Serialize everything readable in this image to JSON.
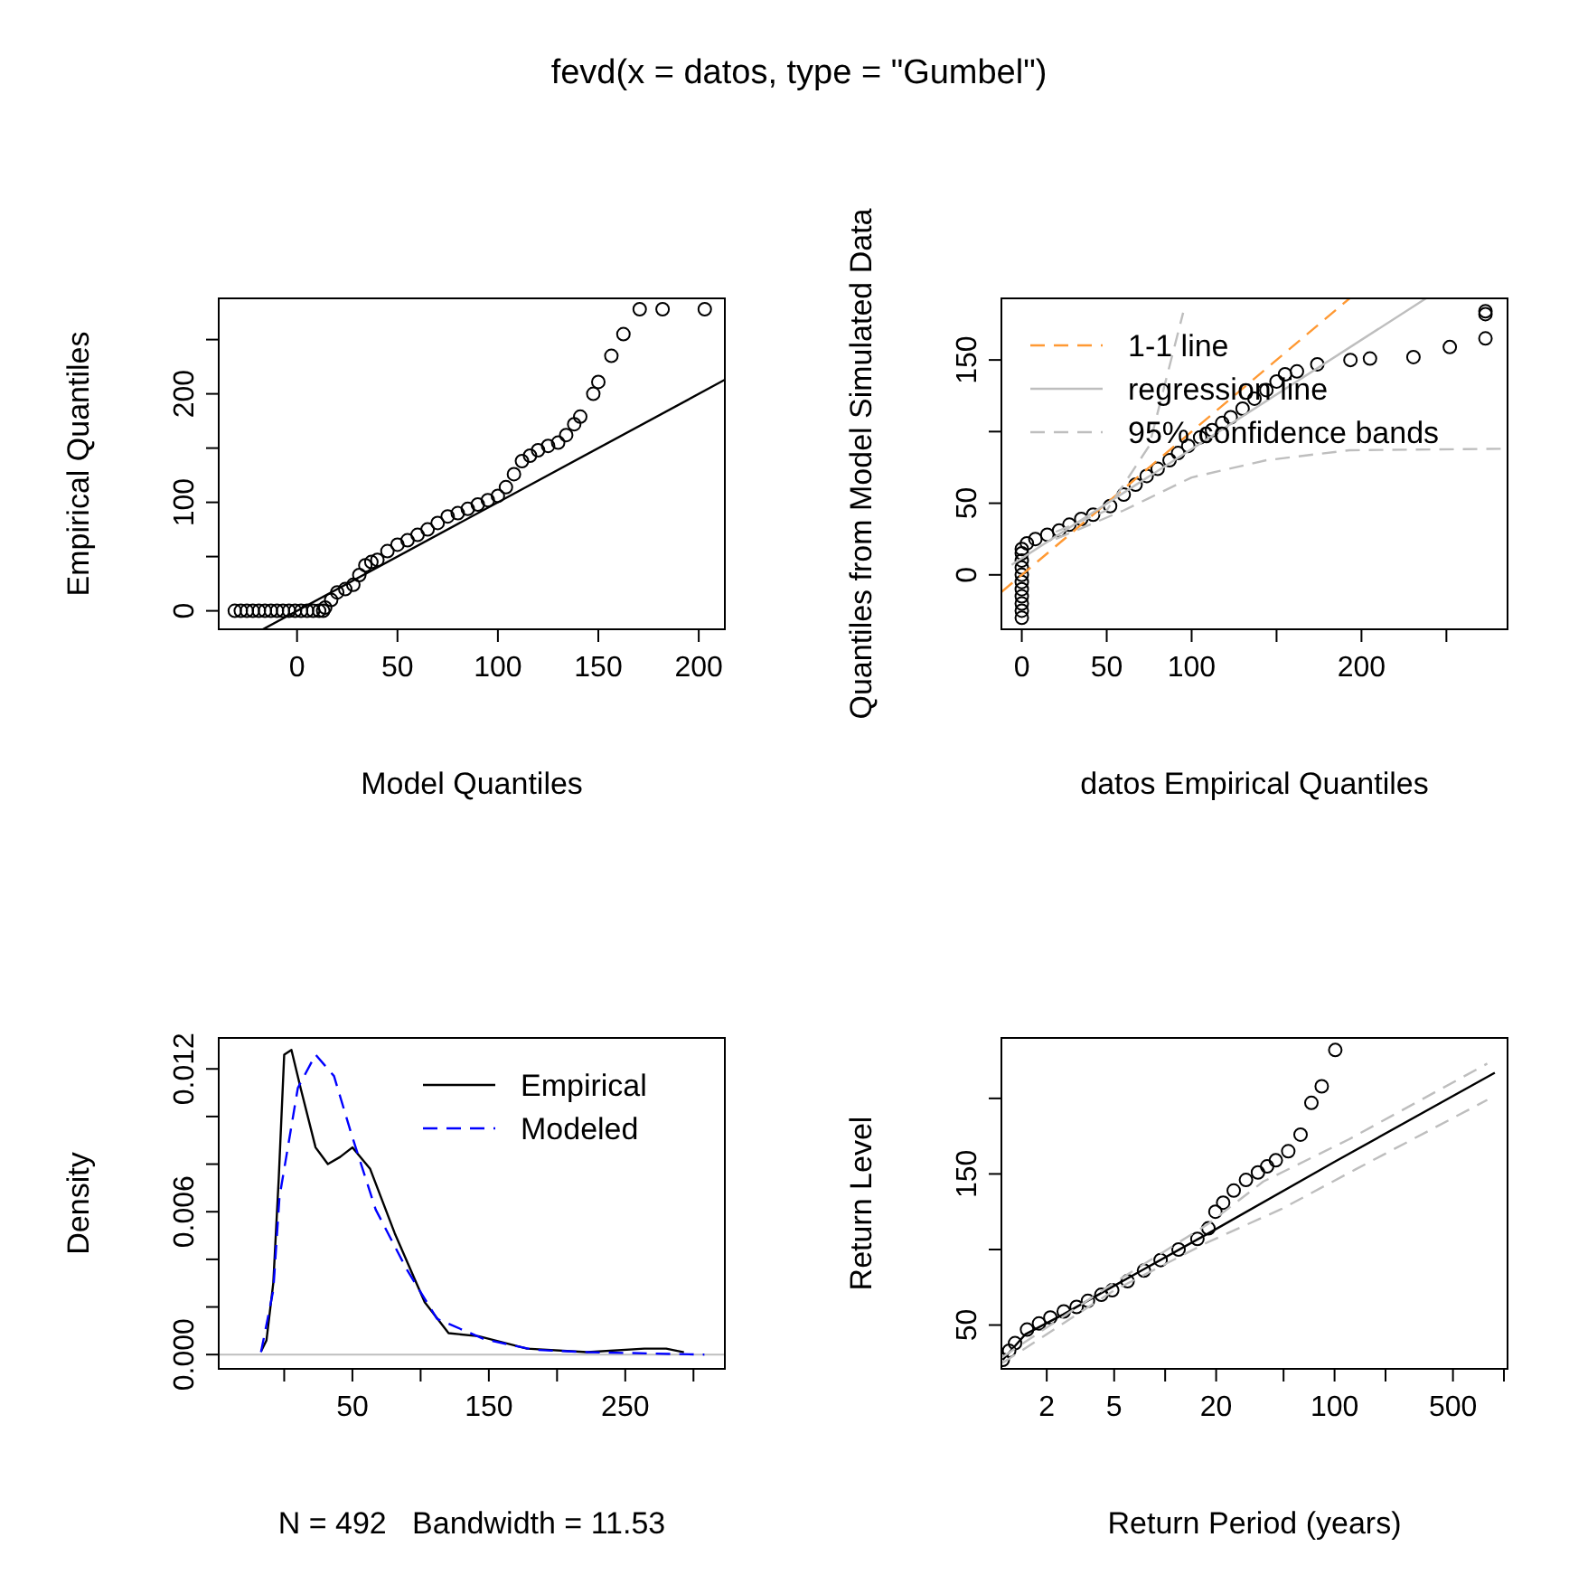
{
  "chart_data": [
    {
      "type": "scatter",
      "title": "fevd(x = datos, type = \"Gumbel\")",
      "xlabel": "Model Quantiles",
      "ylabel": "Empirical Quantiles",
      "xlim": [
        -39,
        213
      ],
      "ylim": [
        -17,
        288
      ],
      "xticks": [
        0,
        50,
        100,
        150,
        200
      ],
      "yticks": [
        0,
        {
          "value": 50,
          "label": null
        },
        100,
        {
          "value": 150,
          "label": null
        },
        200,
        {
          "value": 250,
          "label": null
        }
      ],
      "series": [
        {
          "marker": "circle",
          "color": "#000000",
          "x": [
            -31,
            -28,
            -25,
            -22,
            -19,
            -16,
            -13,
            -10,
            -7,
            -4,
            -1,
            2,
            5,
            8,
            11,
            13,
            14,
            17,
            20,
            24,
            28,
            31,
            34,
            37,
            40,
            45,
            50,
            55,
            60,
            65,
            70,
            75,
            80,
            85,
            90,
            95,
            100,
            104,
            108,
            112,
            116,
            120,
            125,
            130,
            134,
            138,
            141,
            147.5,
            150,
            156.5,
            162.5,
            170.6,
            182,
            203
          ],
          "values": [
            0,
            0,
            0,
            0,
            0,
            0,
            0,
            0,
            0,
            0,
            0,
            0,
            0,
            0,
            0,
            0,
            3,
            10,
            17,
            20,
            24,
            33,
            42,
            45,
            47,
            55,
            61,
            65,
            70,
            75,
            81,
            87,
            90,
            94,
            98,
            102,
            106,
            114,
            126,
            138,
            143,
            148,
            152,
            155,
            162,
            172,
            179,
            200,
            211,
            235,
            255,
            278,
            278,
            278
          ]
        },
        {
          "type": "line",
          "color": "#000000",
          "x": [
            -17,
            213
          ],
          "values": [
            -17,
            213
          ]
        }
      ]
    },
    {
      "type": "scatter",
      "xlabel": "datos Empirical Quantiles",
      "ylabel": "Quantiles from Model Simulated Data",
      "xlim": [
        -12,
        286
      ],
      "ylim": [
        -38,
        193
      ],
      "xticks": [
        0,
        50,
        100,
        {
          "value": 150,
          "label": null
        },
        200,
        {
          "value": 250,
          "label": null
        }
      ],
      "yticks": [
        0,
        50,
        {
          "value": 100,
          "label": null
        },
        150
      ],
      "legend": "top left",
      "series": [
        {
          "marker": "circle",
          "color": "#000000",
          "x": [
            0,
            0,
            0,
            0,
            0,
            0,
            0,
            0,
            0,
            0,
            0,
            3,
            8,
            15,
            22,
            28,
            35,
            42,
            52,
            60,
            67,
            73.5,
            80,
            87,
            92,
            98,
            105,
            112,
            118,
            123,
            130,
            137,
            144,
            150,
            155,
            162,
            174,
            193.5,
            205,
            230.6,
            252,
            273,
            273,
            273
          ],
          "values": [
            -30,
            -25,
            -20,
            -15,
            -10,
            -5,
            0,
            5,
            10,
            15,
            18,
            22,
            25,
            28,
            31,
            35,
            39,
            42,
            48,
            56,
            63,
            69,
            74,
            80,
            85,
            90,
            96,
            101,
            106,
            110,
            116,
            123,
            129,
            135,
            140,
            142,
            147,
            150,
            151,
            152,
            159,
            165,
            182,
            184
          ]
        },
        {
          "type": "line",
          "name": "1-1 line",
          "color": "#ff9933",
          "line_style": "dashed",
          "x": [
            -12,
            193
          ],
          "values": [
            -12,
            193
          ]
        },
        {
          "type": "line",
          "name": "regression line",
          "color": "#bebebe",
          "line_style": "solid",
          "x": [
            -6,
            238
          ],
          "values": [
            7,
            193
          ]
        },
        {
          "type": "line",
          "name": "95% confidence bands",
          "color": "#bebebe",
          "line_style": "dashed",
          "x": [
            20,
            50,
            75,
            95
          ],
          "values": [
            30,
            45,
            90,
            183
          ]
        },
        {
          "type": "line",
          "color": "#bebebe",
          "line_style": "dashed",
          "x": [
            20,
            60,
            100,
            144,
            193,
            282
          ],
          "values": [
            25,
            45,
            68,
            80,
            87,
            88
          ]
        }
      ]
    },
    {
      "type": "line",
      "xlabel": "N = 492   Bandwidth = 11.53",
      "ylabel": "Density",
      "xlim": [
        -48,
        323
      ],
      "ylim": [
        -0.0006,
        0.0133
      ],
      "xticks": [
        {
          "value": 0,
          "label": null
        },
        50,
        {
          "value": 100,
          "label": null
        },
        150,
        {
          "value": 200,
          "label": null
        },
        250,
        {
          "value": 300,
          "label": null
        }
      ],
      "yticks": [
        {
          "value": 0,
          "label": "0.000"
        },
        {
          "value": 0.002,
          "label": null
        },
        {
          "value": 0.004,
          "label": null
        },
        {
          "value": 0.006,
          "label": "0.006"
        },
        {
          "value": 0.008,
          "label": null
        },
        {
          "value": 0.01,
          "label": null
        },
        {
          "value": 0.012,
          "label": "0.012"
        }
      ],
      "legend": "top right",
      "ref_lines": [
        {
          "axis": "y",
          "value": 0,
          "color": "#bebebe"
        }
      ],
      "series": [
        {
          "name": "Empirical",
          "color": "#000000",
          "line_style": "solid",
          "x": [
            -17,
            -13,
            -8,
            -4,
            0,
            5.3,
            12,
            23,
            32,
            41,
            50,
            63,
            81,
            103,
            120.5,
            142.5,
            178,
            222,
            264,
            280,
            293
          ],
          "values": [
            0.00013,
            0.0006,
            0.003,
            0.0074,
            0.0126,
            0.0128,
            0.0112,
            0.0087,
            0.008,
            0.0083,
            0.0087,
            0.0078,
            0.0051,
            0.0022,
            0.0009,
            0.00077,
            0.00025,
            0.0001,
            0.00025,
            0.00025,
            0.0001
          ]
        },
        {
          "name": "Modeled",
          "color": "#0000ff",
          "line_style": "dashed",
          "x": [
            -17,
            -8,
            -3.5,
            10,
            23,
            36.5,
            49.6,
            67,
            89.6,
            112,
            147,
            183,
            223,
            308
          ],
          "values": [
            0.0001,
            0.0027,
            0.0066,
            0.0112,
            0.0126,
            0.0117,
            0.0092,
            0.0061,
            0.0036,
            0.0015,
            0.00064,
            0.0002,
            0.0001,
            0
          ]
        }
      ]
    },
    {
      "type": "scatter",
      "xlabel": "Return Period (years)",
      "ylabel": "Return Level",
      "log": "x",
      "xlim": [
        1.08,
        1050
      ],
      "ylim": [
        21,
        240
      ],
      "xticks": [
        2,
        5,
        {
          "value": 10,
          "label": null
        },
        20,
        {
          "value": 50,
          "label": null
        },
        100,
        {
          "value": 200,
          "label": null
        },
        500,
        {
          "value": 1000,
          "label": null
        }
      ],
      "yticks": [
        50,
        {
          "value": 100,
          "label": null
        },
        150,
        {
          "value": 200,
          "label": null
        }
      ],
      "series": [
        {
          "marker": "circle",
          "color": "#000000",
          "x": [
            1.1,
            1.2,
            1.3,
            1.53,
            1.8,
            2.1,
            2.52,
            3,
            3.5,
            4.2,
            4.87,
            6,
            7.5,
            9.4,
            12,
            15.5,
            18,
            19.8,
            22,
            25.4,
            30,
            35.3,
            40,
            45,
            53.3,
            63,
            73,
            84,
            101
          ],
          "values": [
            27,
            33,
            38,
            47,
            51,
            55,
            59,
            62,
            66,
            70,
            73,
            79,
            86,
            93,
            100,
            107,
            114,
            125,
            131,
            139,
            146,
            151,
            155,
            159,
            165,
            176,
            197,
            208,
            232
          ]
        },
        {
          "type": "line",
          "color": "#000000",
          "line_style": "solid",
          "x": [
            1.1,
            1.5,
            2.5,
            5,
            18.2,
            100,
            883
          ],
          "values": [
            27,
            44,
            57,
            76,
            111,
            158,
            217
          ]
        },
        {
          "type": "line",
          "color": "#bebebe",
          "line_style": "dashed",
          "x": [
            1.1,
            5,
            18,
            38,
            122,
            797
          ],
          "values": [
            29,
            78,
            117,
            145,
            173,
            223
          ]
        },
        {
          "type": "line",
          "color": "#bebebe",
          "line_style": "dashed",
          "x": [
            1.1,
            5,
            18,
            49,
            133,
            797
          ],
          "values": [
            25,
            73,
            105,
            127,
            153,
            199
          ]
        }
      ]
    }
  ]
}
